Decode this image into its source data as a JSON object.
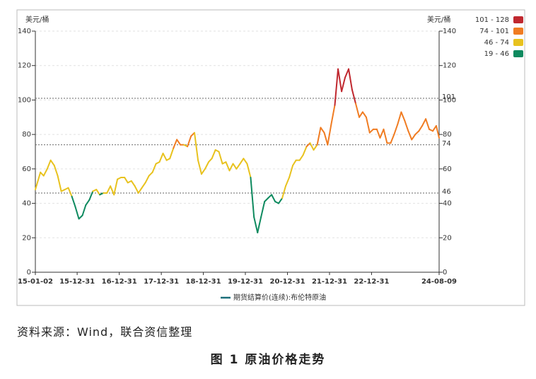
{
  "chart_data": {
    "type": "line",
    "y_label": "美元/桶",
    "y2_label": "美元/桶",
    "x": [
      "2015-01-02",
      "2015-02-15",
      "2015-03-15",
      "2015-04-15",
      "2015-05-15",
      "2015-06-15",
      "2015-07-15",
      "2015-08-15",
      "2015-09-15",
      "2015-10-15",
      "2015-11-15",
      "2015-12-15",
      "2016-01-15",
      "2016-02-15",
      "2016-03-15",
      "2016-04-15",
      "2016-05-15",
      "2016-06-15",
      "2016-07-15",
      "2016-08-15",
      "2016-09-15",
      "2016-10-15",
      "2016-11-15",
      "2016-12-15",
      "2017-01-15",
      "2017-02-15",
      "2017-03-15",
      "2017-04-15",
      "2017-05-15",
      "2017-06-15",
      "2017-07-15",
      "2017-08-15",
      "2017-09-15",
      "2017-10-15",
      "2017-11-15",
      "2017-12-15",
      "2018-01-15",
      "2018-02-15",
      "2018-03-15",
      "2018-04-15",
      "2018-05-15",
      "2018-06-15",
      "2018-07-15",
      "2018-08-15",
      "2018-09-15",
      "2018-10-15",
      "2018-11-15",
      "2018-12-15",
      "2019-01-15",
      "2019-02-15",
      "2019-03-15",
      "2019-04-15",
      "2019-05-15",
      "2019-06-15",
      "2019-07-15",
      "2019-08-15",
      "2019-09-15",
      "2019-10-15",
      "2019-11-15",
      "2019-12-15",
      "2020-01-15",
      "2020-02-15",
      "2020-03-15",
      "2020-04-15",
      "2020-05-15",
      "2020-06-15",
      "2020-07-15",
      "2020-08-15",
      "2020-09-15",
      "2020-10-15",
      "2020-11-15",
      "2020-12-15",
      "2021-01-15",
      "2021-02-15",
      "2021-03-15",
      "2021-04-15",
      "2021-05-15",
      "2021-06-15",
      "2021-07-15",
      "2021-08-15",
      "2021-09-15",
      "2021-10-15",
      "2021-11-15",
      "2021-12-15",
      "2022-01-15",
      "2022-02-15",
      "2022-03-15",
      "2022-04-15",
      "2022-05-15",
      "2022-06-15",
      "2022-07-15",
      "2022-08-15",
      "2022-09-15",
      "2022-10-15",
      "2022-11-15",
      "2022-12-15",
      "2023-01-15",
      "2023-02-15",
      "2023-03-15",
      "2023-04-15",
      "2023-05-15",
      "2023-06-15",
      "2023-07-15",
      "2023-08-15",
      "2023-09-15",
      "2023-10-15",
      "2023-11-15",
      "2023-12-15",
      "2024-01-15",
      "2024-02-15",
      "2024-03-15",
      "2024-04-15",
      "2024-05-15",
      "2024-06-15",
      "2024-07-15",
      "2024-08-09"
    ],
    "series": [
      {
        "name": "期货结算价(连续):布伦特原油",
        "color": "#1a6e7a",
        "values": [
          48,
          58,
          56,
          60,
          65,
          62,
          56,
          47,
          48,
          49,
          44,
          38,
          31,
          33,
          39,
          42,
          47,
          48,
          45,
          46,
          46,
          50,
          45,
          54,
          55,
          55,
          52,
          53,
          50,
          46,
          49,
          52,
          56,
          58,
          63,
          64,
          69,
          65,
          66,
          72,
          77,
          74,
          74,
          73,
          79,
          81,
          65,
          57,
          60,
          64,
          66,
          71,
          70,
          63,
          64,
          59,
          63,
          60,
          63,
          66,
          63,
          55,
          32,
          23,
          32,
          41,
          43,
          45,
          41,
          40,
          43,
          50,
          55,
          62,
          65,
          65,
          68,
          73,
          75,
          71,
          74,
          84,
          81,
          74,
          86,
          97,
          118,
          105,
          113,
          118,
          106,
          98,
          90,
          93,
          90,
          81,
          83,
          83,
          78,
          83,
          75,
          75,
          80,
          86,
          93,
          88,
          82,
          77,
          80,
          82,
          85,
          89,
          83,
          82,
          85,
          78
        ]
      }
    ],
    "bands": [
      {
        "label": "101 - 128",
        "min": 101,
        "max": 128,
        "color": "#c0282f"
      },
      {
        "label": "74 - 101",
        "min": 74,
        "max": 101,
        "color": "#f07c22"
      },
      {
        "label": "46 - 74",
        "min": 46,
        "max": 74,
        "color": "#e8c21e"
      },
      {
        "label": "19 - 46",
        "min": 19,
        "max": 46,
        "color": "#0e8a5f"
      }
    ],
    "ref_lines": [
      101,
      74,
      46
    ],
    "xlim": [
      "2015-01-02",
      "2024-08-09"
    ],
    "xticks": [
      {
        "value": "2015-01-02",
        "label": "15-01-02"
      },
      {
        "value": "2015-12-31",
        "label": "15-12-31"
      },
      {
        "value": "2016-12-31",
        "label": "16-12-31"
      },
      {
        "value": "2017-12-31",
        "label": "17-12-31"
      },
      {
        "value": "2018-12-31",
        "label": "18-12-31"
      },
      {
        "value": "2019-12-31",
        "label": "19-12-31"
      },
      {
        "value": "2020-12-31",
        "label": "20-12-31"
      },
      {
        "value": "2021-12-31",
        "label": "21-12-31"
      },
      {
        "value": "2022-12-31",
        "label": "22-12-31"
      },
      {
        "value": "2024-08-09",
        "label": "24-08-09"
      }
    ],
    "ylim": [
      0,
      140
    ],
    "yticks": [
      0,
      20,
      40,
      60,
      80,
      100,
      120,
      140
    ],
    "y2lim": [
      0,
      140
    ],
    "y2ticks": [
      0,
      20,
      40,
      60,
      80,
      100,
      120,
      140
    ],
    "grid": true,
    "source": "资料来源：Wind，联合资信整理",
    "caption": "图 1 原油价格走势"
  }
}
